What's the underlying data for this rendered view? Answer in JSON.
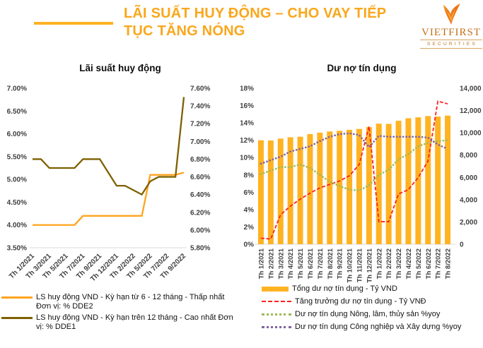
{
  "header": {
    "title_line1": "LÃI SUẤT HUY ĐỘNG – CHO VAY TIẾP",
    "title_line2": "TỤC TĂNG NÓNG"
  },
  "logo": {
    "brand": "VIETFIRST",
    "tagline": "SECURITIES"
  },
  "colors": {
    "title_orange": "#F9A71C",
    "rule_orange": "#FFB121",
    "logo_brown": "#C0711E",
    "deposit_low_line": "#FFA41E",
    "deposit_high_line": "#7E6000",
    "bar_fill": "#FFB322",
    "growth_red": "#FF1F1F",
    "agri_green": "#9BBB59",
    "industry_purple": "#8064A2",
    "axis_text": "#404040",
    "baseline_gray": "#d9d9d9"
  },
  "chart_data": [
    {
      "id": "deposit_rates",
      "type": "line",
      "title": "Lãi suất huy động",
      "n_points": 19,
      "x_tick_indices": [
        0,
        2,
        4,
        6,
        8,
        10,
        12,
        14,
        16,
        18
      ],
      "x_tick_labels": [
        "Th 1/2021",
        "Th 3/2021",
        "Th 5/2021",
        "Th 7/2021",
        "Th 9/2021",
        "Th 12/2021",
        "Th 2/2022",
        "Th 5/2022",
        "Th 7/2022",
        "Th 9/2022"
      ],
      "left_axis": {
        "min": 3.5,
        "max": 7.0,
        "ticks": [
          "7.00%",
          "6.50%",
          "6.00%",
          "5.50%",
          "5.00%",
          "4.50%",
          "4.00%",
          "3.50%"
        ]
      },
      "right_axis": {
        "min": 5.8,
        "max": 7.6,
        "ticks": [
          "7.60%",
          "7.40%",
          "7.20%",
          "7.00%",
          "6.80%",
          "6.60%",
          "6.40%",
          "6.20%",
          "6.00%",
          "5.80%"
        ]
      },
      "series": [
        {
          "name": "LS huy động VND - Kỳ hạn từ 6 - 12 tháng - Thấp nhất Đơn vị: % DDE2",
          "axis": "left",
          "style": "solid",
          "color": "#FFA41E",
          "values": [
            4.0,
            4.0,
            4.0,
            4.0,
            4.0,
            4.0,
            4.2,
            4.2,
            4.2,
            4.2,
            4.2,
            4.2,
            4.2,
            4.2,
            5.1,
            5.1,
            5.1,
            5.1,
            5.15
          ]
        },
        {
          "name": "LS huy động VND - Kỳ hạn trên 12 tháng - Cao nhất Đơn vị: % DDE1",
          "axis": "right",
          "style": "solid",
          "color": "#7E6000",
          "values": [
            6.8,
            6.8,
            6.7,
            6.7,
            6.7,
            6.7,
            6.8,
            6.8,
            6.8,
            6.65,
            6.5,
            6.5,
            6.45,
            6.4,
            6.55,
            6.6,
            6.6,
            6.6,
            7.5
          ]
        }
      ]
    },
    {
      "id": "credit_outstanding",
      "type": "bar+line",
      "title": "Dư nợ tín dụng",
      "categories": [
        "Th 1/2021",
        "Th 2/2021",
        "Th 3/2021",
        "Th 4/2021",
        "Th 5/2021",
        "Th 6/2021",
        "Th 7/2021",
        "Th 8/2021",
        "Th 9/2021",
        "Th 10/2021",
        "Th 11/2021",
        "Th 12/2021",
        "Th 1/2022",
        "Th 2/2022",
        "Th 3/2022",
        "Th 4/2022",
        "Th 5/2022",
        "Th 6/2022",
        "Th 7/2022",
        "Th 8/2022"
      ],
      "left_axis": {
        "min": 0,
        "max": 18,
        "ticks": [
          "18%",
          "16%",
          "14%",
          "12%",
          "10%",
          "8%",
          "6%",
          "4%",
          "2%",
          "0%"
        ]
      },
      "right_axis": {
        "min": 0,
        "max": 14000,
        "ticks": [
          "14,000",
          "12,000",
          "10,000",
          "8,000",
          "6,000",
          "4,000",
          "2,000",
          "0"
        ]
      },
      "bar_series": {
        "name": "Tổng dư nợ tín dụng - Tỷ VND",
        "axis": "right",
        "color": "#FFB322",
        "values": [
          9330,
          9310,
          9480,
          9600,
          9650,
          9890,
          10010,
          10120,
          10180,
          10270,
          10350,
          10520,
          10820,
          10800,
          11080,
          11310,
          11390,
          11500,
          11460,
          11540
        ]
      },
      "line_series": [
        {
          "name": "Tăng trưởng dư nợ tín dụng - Tỷ VNĐ",
          "axis": "left",
          "style": "dashed",
          "color": "#FF1F1F",
          "values": [
            0.7,
            0.6,
            3.4,
            4.4,
            5.2,
            5.9,
            6.5,
            6.9,
            7.3,
            7.9,
            9.2,
            13.6,
            2.6,
            2.6,
            5.8,
            6.3,
            7.7,
            9.6,
            16.5,
            16.2
          ]
        },
        {
          "name": "Dư nợ tín dụng Nông, lâm, thủy sản %yoy",
          "axis": "left",
          "style": "dotted",
          "color": "#9BBB59",
          "values": [
            8.1,
            8.5,
            8.9,
            8.9,
            9.2,
            8.8,
            8.0,
            7.2,
            6.7,
            6.3,
            6.2,
            6.8,
            8.0,
            8.6,
            9.8,
            10.4,
            11.3,
            11.7,
            11.9,
            12.0
          ]
        },
        {
          "name": "Dư nợ tín dụng Công nghiệp và Xây dựng %yoy",
          "axis": "left",
          "style": "dotted",
          "color": "#8064A2",
          "values": [
            9.3,
            9.7,
            10.1,
            10.7,
            11.0,
            11.3,
            11.9,
            12.4,
            12.7,
            12.8,
            12.6,
            11.2,
            12.5,
            12.4,
            12.4,
            12.4,
            12.4,
            12.3,
            11.5,
            11.0
          ]
        }
      ]
    }
  ]
}
